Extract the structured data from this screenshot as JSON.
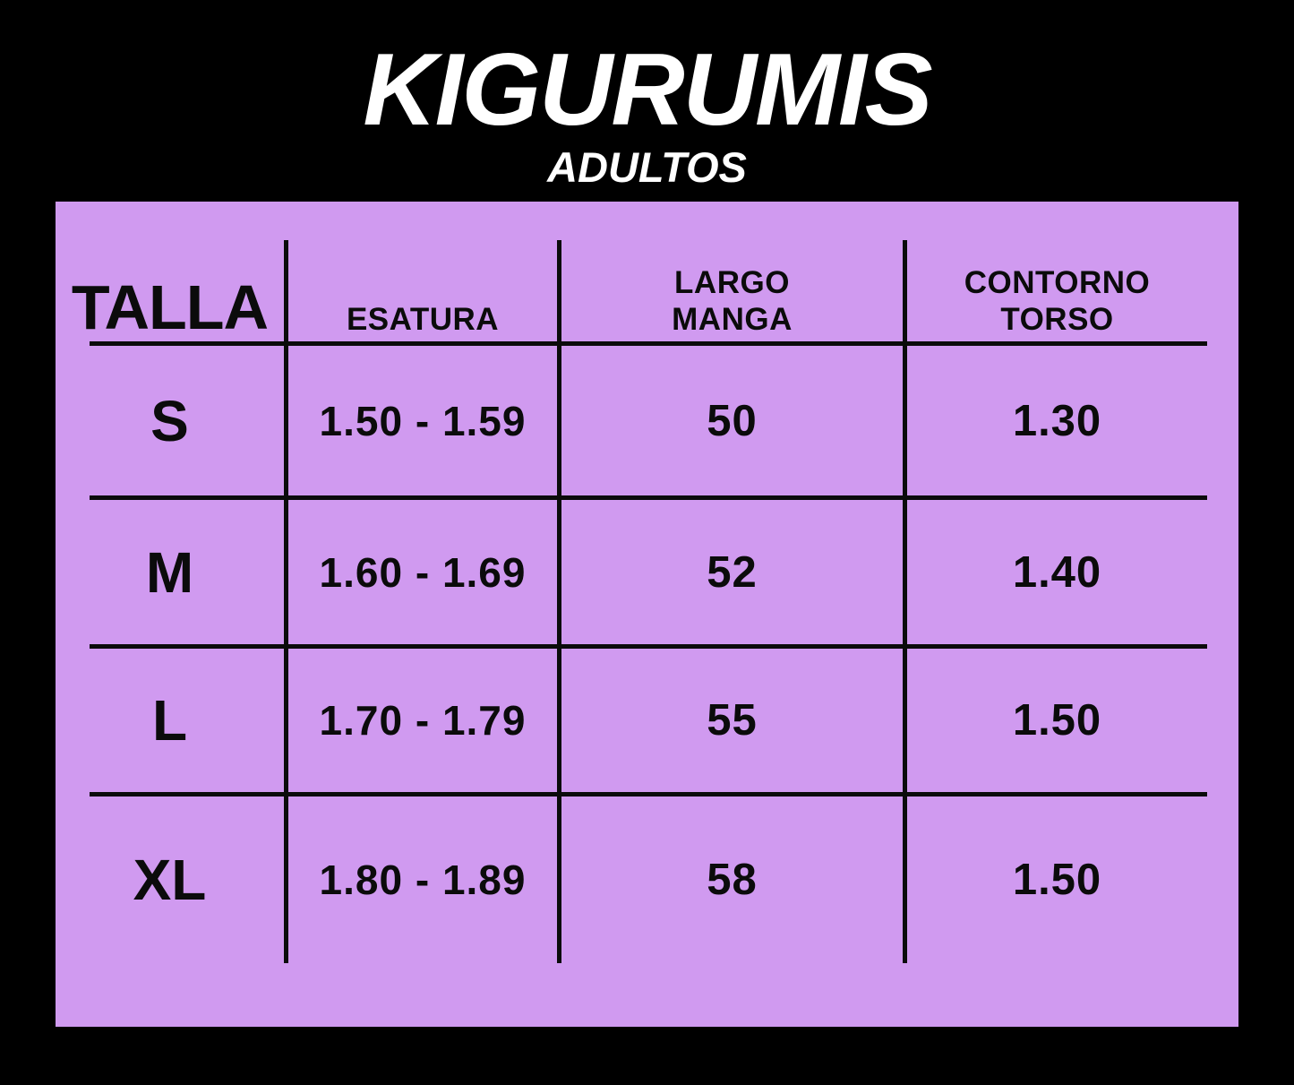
{
  "title": "KIGURUMIS",
  "subtitle": "ADULTOS",
  "colors": {
    "background": "#000000",
    "panel": "#D09AF0",
    "grid_line": "#0B0B0B",
    "title_text": "#FFFFFF",
    "table_text": "#0B0B0B"
  },
  "table": {
    "columns": [
      {
        "id": "talla",
        "label_lines": [
          "TALLA"
        ]
      },
      {
        "id": "esatura",
        "label_lines": [
          "ESATURA"
        ]
      },
      {
        "id": "largo_manga",
        "label_lines": [
          "LARGO",
          "MANGA"
        ]
      },
      {
        "id": "contorno_torso",
        "label_lines": [
          "CONTORNO",
          "TORSO"
        ]
      }
    ],
    "rows": [
      {
        "talla": "S",
        "esatura": "1.50 - 1.59",
        "largo_manga": "50",
        "contorno_torso": "1.30"
      },
      {
        "talla": "M",
        "esatura": "1.60 - 1.69",
        "largo_manga": "52",
        "contorno_torso": "1.40"
      },
      {
        "talla": "L",
        "esatura": "1.70 - 1.79",
        "largo_manga": "55",
        "contorno_torso": "1.50"
      },
      {
        "talla": "XL",
        "esatura": "1.80 - 1.89",
        "largo_manga": "58",
        "contorno_torso": "1.50"
      }
    ]
  },
  "chart_data": {
    "type": "table",
    "title": "KIGURUMIS",
    "subtitle": "ADULTOS",
    "columns": [
      "TALLA",
      "ESATURA",
      "LARGO MANGA",
      "CONTORNO TORSO"
    ],
    "rows": [
      [
        "S",
        "1.50 - 1.59",
        "50",
        "1.30"
      ],
      [
        "M",
        "1.60 - 1.69",
        "52",
        "1.40"
      ],
      [
        "L",
        "1.70 - 1.79",
        "55",
        "1.50"
      ],
      [
        "XL",
        "1.80 - 1.89",
        "58",
        "1.50"
      ]
    ]
  }
}
